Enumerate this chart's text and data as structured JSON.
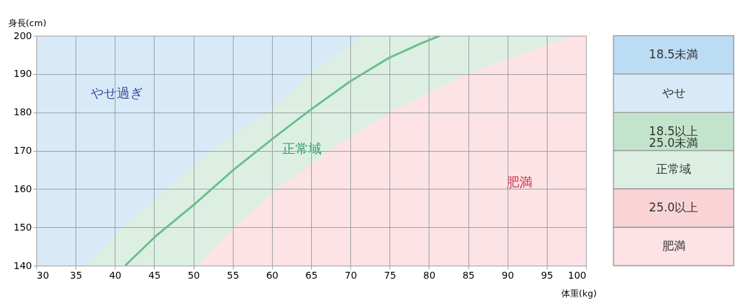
{
  "chart_data": [
    {
      "type": "area",
      "xlabel": "体重(kg)",
      "ylabel": "身長(cm)",
      "xlim": [
        30,
        100
      ],
      "ylim": [
        140,
        200
      ],
      "xticks": [
        30,
        35,
        40,
        45,
        50,
        55,
        60,
        65,
        70,
        75,
        80,
        85,
        90,
        95,
        100
      ],
      "yticks": [
        140,
        150,
        160,
        170,
        180,
        190,
        200
      ],
      "grid": true,
      "legend": false,
      "series": [
        {
          "type": "area",
          "color": "#d8eaf7",
          "x": [
            30,
            100
          ],
          "values": [
            200,
            200
          ]
        },
        {
          "type": "area",
          "color": "#ddefe3",
          "x": [
            36.2,
            41,
            46.5,
            52.3,
            59.4,
            64.8,
            71.5,
            100
          ],
          "values": [
            140,
            150,
            160,
            170,
            180,
            190,
            200,
            200
          ]
        },
        {
          "type": "area",
          "color": "#fde3e5",
          "x": [
            50.6,
            55.2,
            60.7,
            67.3,
            74.9,
            84.9,
            98.3,
            100
          ],
          "values": [
            140,
            150,
            160,
            170,
            180,
            190,
            200,
            200
          ]
        },
        {
          "type": "line",
          "color": "#66c08a",
          "x": [
            41.3,
            45.2,
            50.3,
            55.1,
            60.2,
            64.8,
            69.9,
            74.9,
            79.0,
            81.4
          ],
          "values": [
            140,
            147.7,
            156.3,
            165,
            173.3,
            180.5,
            188,
            194.2,
            198,
            200
          ]
        }
      ],
      "annotations": [
        "やせ過ぎ",
        "正常域",
        "肥満"
      ]
    },
    {
      "type": "other",
      "annotations": [
        "18.5未満",
        "やせ",
        "18.5以上\n25.0未満",
        "正常域",
        "25.0以上",
        "肥満"
      ],
      "colors": [
        "#bcdcf3",
        "#d8eaf7",
        "#c3e4cc",
        "#ddefe3",
        "#f9d3d6",
        "#fde3e5"
      ]
    }
  ]
}
